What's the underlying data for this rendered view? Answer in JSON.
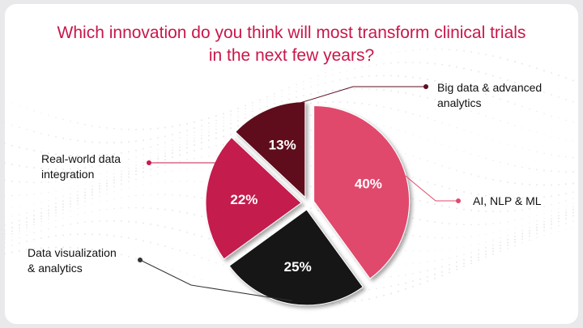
{
  "title": {
    "line1": "Which innovation do you think will most transform clinical trials",
    "line2": "in the next few years?"
  },
  "colors": {
    "title": "#c8174a",
    "ai_nlp_ml": "#e04a6c",
    "big_data": "#5e0d1f",
    "real_world": "#c41c4d",
    "data_viz": "#121212"
  },
  "chart_data": {
    "type": "pie",
    "title": "Which innovation do you think will most transform clinical trials in the next few years?",
    "unit": "%",
    "slices": [
      {
        "key": "ai",
        "label": "AI, NLP & ML",
        "label_lines": [
          "AI, NLP & ML"
        ],
        "value": 40,
        "value_label": "40%"
      },
      {
        "key": "dv",
        "label": "Data visualization & analytics",
        "label_lines": [
          "Data visualization",
          "& analytics"
        ],
        "value": 25,
        "value_label": "25%"
      },
      {
        "key": "rw",
        "label": "Real-world data integration",
        "label_lines": [
          "Real-world data",
          "integration"
        ],
        "value": 22,
        "value_label": "22%"
      },
      {
        "key": "bd",
        "label": "Big data & advanced analytics",
        "label_lines": [
          "Big data & advanced",
          "analytics"
        ],
        "value": 13,
        "value_label": "13%"
      }
    ]
  }
}
